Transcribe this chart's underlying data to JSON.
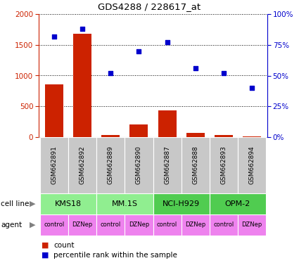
{
  "title": "GDS4288 / 228617_at",
  "samples": [
    "GSM662891",
    "GSM662892",
    "GSM662889",
    "GSM662890",
    "GSM662887",
    "GSM662888",
    "GSM662893",
    "GSM662894"
  ],
  "counts": [
    860,
    1680,
    30,
    210,
    430,
    65,
    35,
    15
  ],
  "percentile_ranks": [
    82,
    88,
    52,
    70,
    77,
    56,
    52,
    40
  ],
  "left_ylim": [
    0,
    2000
  ],
  "right_ylim": [
    0,
    100
  ],
  "left_yticks": [
    0,
    500,
    1000,
    1500,
    2000
  ],
  "right_yticks": [
    0,
    25,
    50,
    75,
    100
  ],
  "right_yticklabels": [
    "0%",
    "25%",
    "50%",
    "75%",
    "100%"
  ],
  "cell_lines": [
    {
      "label": "KMS18",
      "cols": [
        0,
        1
      ],
      "color": "#90ee90"
    },
    {
      "label": "MM.1S",
      "cols": [
        2,
        3
      ],
      "color": "#90ee90"
    },
    {
      "label": "NCI-H929",
      "cols": [
        4,
        5
      ],
      "color": "#50cc50"
    },
    {
      "label": "OPM-2",
      "cols": [
        6,
        7
      ],
      "color": "#50cc50"
    }
  ],
  "agents": [
    "control",
    "DZNep",
    "control",
    "DZNep",
    "control",
    "DZNep",
    "control",
    "DZNep"
  ],
  "agent_color_control": "#ee82ee",
  "agent_color_dzNep": "#dd44dd",
  "bar_color": "#cc2200",
  "scatter_color": "#0000cc",
  "left_axis_color": "#cc2200",
  "right_axis_color": "#0000cc",
  "sample_bg_color": "#c8c8c8",
  "legend_count_color": "#cc2200",
  "legend_percentile_color": "#0000cc"
}
